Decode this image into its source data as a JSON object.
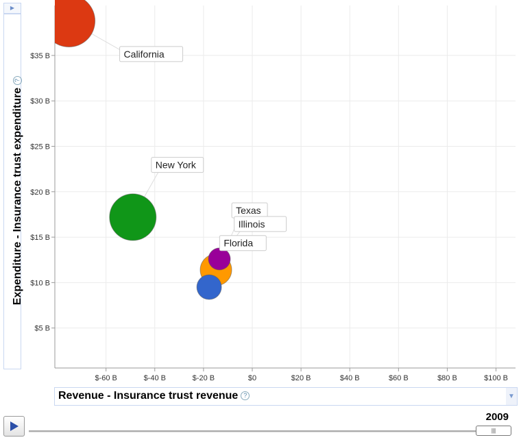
{
  "chart_data": {
    "type": "scatter",
    "xlabel": "Revenue - Insurance trust revenue",
    "ylabel": "Expenditure - Insurance trust expenditure",
    "xlim": [
      -81,
      108
    ],
    "ylim": [
      0.6,
      40.5
    ],
    "x_ticks": [
      {
        "v": -60,
        "label": "$-60 B"
      },
      {
        "v": -40,
        "label": "$-40 B"
      },
      {
        "v": -20,
        "label": "$-20 B"
      },
      {
        "v": 0,
        "label": "$0"
      },
      {
        "v": 20,
        "label": "$20 B"
      },
      {
        "v": 40,
        "label": "$40 B"
      },
      {
        "v": 60,
        "label": "$60 B"
      },
      {
        "v": 80,
        "label": "$80 B"
      },
      {
        "v": 100,
        "label": "$100 B"
      }
    ],
    "y_ticks": [
      {
        "v": 5,
        "label": "$5 B"
      },
      {
        "v": 10,
        "label": "$10 B"
      },
      {
        "v": 15,
        "label": "$15 B"
      },
      {
        "v": 20,
        "label": "$20 B"
      },
      {
        "v": 25,
        "label": "$25 B"
      },
      {
        "v": 30,
        "label": "$30 B"
      },
      {
        "v": 35,
        "label": "$35 B"
      }
    ],
    "grid": true,
    "points": [
      {
        "name": "California",
        "x": -75.2,
        "y": 38.8,
        "size": 38,
        "color": "#dc3912"
      },
      {
        "name": "New York",
        "x": -49,
        "y": 17.2,
        "size": 34,
        "color": "#109618"
      },
      {
        "name": "Texas",
        "x": -14.9,
        "y": 11.4,
        "size": 23,
        "color": "#ff9900"
      },
      {
        "name": "Florida",
        "x": -17.7,
        "y": 9.5,
        "size": 18,
        "color": "#3366cc"
      },
      {
        "name": "Illinois",
        "x": -13.5,
        "y": 12.6,
        "size": 16,
        "color": "#990099"
      }
    ],
    "labels": [
      {
        "name": "California",
        "lx": -53,
        "ly": 35
      },
      {
        "name": "New York",
        "lx": -40,
        "ly": 22.8
      },
      {
        "name": "Texas",
        "lx": -7,
        "ly": 17.8
      },
      {
        "name": "Illinois",
        "lx": -6,
        "ly": 16.3
      },
      {
        "name": "Florida",
        "lx": -12,
        "ly": 14.2
      }
    ]
  },
  "controls": {
    "year": "2009",
    "play": "play-icon",
    "expand": "expand-icon",
    "dropdown": "chevron-down-icon",
    "help": "?"
  }
}
